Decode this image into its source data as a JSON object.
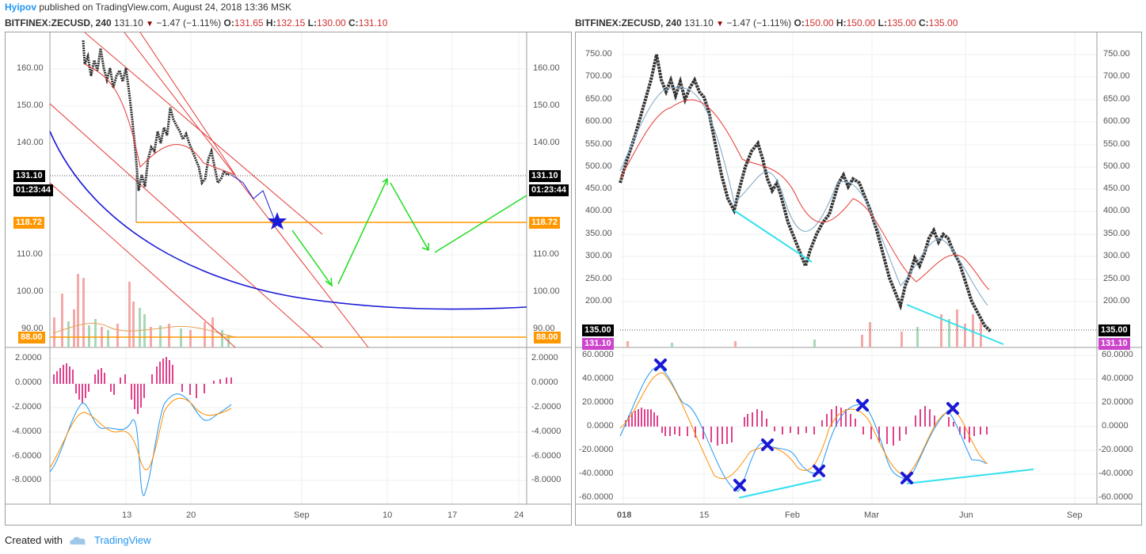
{
  "header": {
    "user": "Hyipov",
    "published": " published on TradingView.com, August 24, 2018 13:36 MSK"
  },
  "left": {
    "symbol": "BITFINEX:ZECUSD, 240",
    "price": "131.10",
    "change": "−1.47 (−1.11%)",
    "o_label": "O:",
    "o": "131.65",
    "h_label": "H:",
    "h": "132.15",
    "l_label": "L:",
    "l": "130.00",
    "c_label": "C:",
    "c": "131.10",
    "price_ticks": [
      "160.00",
      "150.00",
      "140.00",
      "110.00",
      "100.00",
      "90.00"
    ],
    "macd_ticks": [
      "2.0000",
      "0.0000",
      "-2.0000",
      "-4.0000",
      "-6.0000",
      "-8.0000"
    ],
    "x_ticks": [
      "13",
      "20",
      "Sep",
      "10",
      "17",
      "24"
    ],
    "tag_price": "131.10",
    "tag_timer": "01:23:44",
    "tag_level": "118.72",
    "tag_low": "88.00",
    "colors": {
      "level": "#ff9800",
      "arc": "#1a1ad6",
      "arrows": "#22dd22",
      "channel": "#e53935"
    }
  },
  "right": {
    "symbol": "BITFINEX:ZECUSD, 240",
    "price": "131.10",
    "change": "−1.47 (−1.11%)",
    "o_label": "O:",
    "o": "150.00",
    "h_label": "H:",
    "h": "150.00",
    "l_label": "L:",
    "l": "135.00",
    "c_label": "C:",
    "c": "135.00",
    "price_ticks": [
      "750.00",
      "700.00",
      "650.00",
      "600.00",
      "550.00",
      "500.00",
      "450.00",
      "400.00",
      "350.00",
      "300.00",
      "250.00",
      "200.00"
    ],
    "macd_ticks": [
      "60.0000",
      "40.0000",
      "20.0000",
      "0.0000",
      "-20.0000",
      "-40.0000",
      "-60.0000"
    ],
    "x_ticks": [
      "018",
      "15",
      "Feb",
      "Mar",
      "Jun",
      "Sep"
    ],
    "tag_close": "135.00",
    "tag_price": "131.10",
    "colors": {
      "divergence": "#33e0ee",
      "marker": "#1a1ad6"
    }
  },
  "footer": {
    "created": "Created with",
    "brand": "TradingView"
  }
}
